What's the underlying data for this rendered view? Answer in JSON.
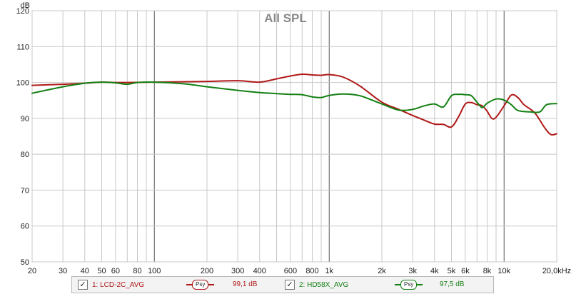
{
  "chart_data": {
    "type": "line",
    "title": "All SPL",
    "ylabel": "dB",
    "xscale": "log",
    "xlim": [
      20,
      20000
    ],
    "ylim": [
      50,
      120
    ],
    "grid": true,
    "x_tick_labels": [
      {
        "v": 20,
        "t": "20"
      },
      {
        "v": 30,
        "t": "30"
      },
      {
        "v": 40,
        "t": "40"
      },
      {
        "v": 50,
        "t": "50"
      },
      {
        "v": 60,
        "t": "60"
      },
      {
        "v": 80,
        "t": "80"
      },
      {
        "v": 100,
        "t": "100"
      },
      {
        "v": 200,
        "t": "200"
      },
      {
        "v": 300,
        "t": "300"
      },
      {
        "v": 400,
        "t": "400"
      },
      {
        "v": 600,
        "t": "600"
      },
      {
        "v": 800,
        "t": "800"
      },
      {
        "v": 1000,
        "t": "1k"
      },
      {
        "v": 2000,
        "t": "2k"
      },
      {
        "v": 3000,
        "t": "3k"
      },
      {
        "v": 4000,
        "t": "4k"
      },
      {
        "v": 5000,
        "t": "5k"
      },
      {
        "v": 6000,
        "t": "6k"
      },
      {
        "v": 8000,
        "t": "8k"
      },
      {
        "v": 10000,
        "t": "10k"
      },
      {
        "v": 20000,
        "t": "20,0kHz"
      }
    ],
    "y_ticks": [
      50,
      60,
      70,
      80,
      90,
      100,
      110,
      120
    ],
    "series": [
      {
        "name": "1: LCD-2C_AVG",
        "color": "#b01818",
        "value_label": "99,1 dB",
        "points": [
          [
            20,
            99.2
          ],
          [
            30,
            99.5
          ],
          [
            40,
            99.8
          ],
          [
            50,
            100.1
          ],
          [
            60,
            100.0
          ],
          [
            70,
            100.0
          ],
          [
            100,
            100.1
          ],
          [
            200,
            100.3
          ],
          [
            300,
            100.5
          ],
          [
            400,
            100.1
          ],
          [
            500,
            101.0
          ],
          [
            600,
            101.8
          ],
          [
            700,
            102.3
          ],
          [
            800,
            102.1
          ],
          [
            900,
            102.0
          ],
          [
            1000,
            102.2
          ],
          [
            1200,
            101.5
          ],
          [
            1500,
            99.0
          ],
          [
            2000,
            94.5
          ],
          [
            2500,
            92.5
          ],
          [
            3000,
            90.8
          ],
          [
            3500,
            89.5
          ],
          [
            4000,
            88.4
          ],
          [
            4500,
            88.3
          ],
          [
            5000,
            87.6
          ],
          [
            5500,
            90.5
          ],
          [
            6000,
            94.0
          ],
          [
            6500,
            94.4
          ],
          [
            7000,
            93.8
          ],
          [
            7500,
            93.5
          ],
          [
            8000,
            92.0
          ],
          [
            8500,
            90.0
          ],
          [
            9000,
            90.3
          ],
          [
            10000,
            93.5
          ],
          [
            11000,
            96.5
          ],
          [
            12000,
            95.8
          ],
          [
            13000,
            93.8
          ],
          [
            15000,
            91.5
          ],
          [
            17000,
            87.5
          ],
          [
            18500,
            85.5
          ],
          [
            20000,
            85.7
          ]
        ]
      },
      {
        "name": "2: HD58X_AVG",
        "color": "#148014",
        "value_label": "97,5 dB",
        "points": [
          [
            20,
            97.0
          ],
          [
            30,
            98.8
          ],
          [
            40,
            99.8
          ],
          [
            50,
            100.1
          ],
          [
            60,
            99.9
          ],
          [
            70,
            99.5
          ],
          [
            80,
            100.0
          ],
          [
            100,
            100.1
          ],
          [
            150,
            99.6
          ],
          [
            200,
            98.8
          ],
          [
            300,
            97.8
          ],
          [
            400,
            97.2
          ],
          [
            500,
            96.9
          ],
          [
            600,
            96.7
          ],
          [
            700,
            96.6
          ],
          [
            800,
            96.0
          ],
          [
            900,
            95.8
          ],
          [
            1000,
            96.4
          ],
          [
            1200,
            96.8
          ],
          [
            1500,
            96.3
          ],
          [
            2000,
            94.0
          ],
          [
            2500,
            92.3
          ],
          [
            3000,
            92.5
          ],
          [
            3500,
            93.5
          ],
          [
            4000,
            94.0
          ],
          [
            4500,
            93.2
          ],
          [
            5000,
            96.3
          ],
          [
            5500,
            96.7
          ],
          [
            6000,
            96.6
          ],
          [
            6500,
            96.3
          ],
          [
            7000,
            94.5
          ],
          [
            7500,
            93.0
          ],
          [
            8000,
            94.2
          ],
          [
            9000,
            95.4
          ],
          [
            10000,
            95.1
          ],
          [
            11000,
            93.8
          ],
          [
            12000,
            92.2
          ],
          [
            14000,
            91.8
          ],
          [
            16000,
            91.8
          ],
          [
            17500,
            93.8
          ],
          [
            20000,
            94.1
          ]
        ]
      }
    ]
  },
  "legend": {
    "items": [
      {
        "label": "1: LCD-2C_AVG",
        "psy": "Psy",
        "value": "99,1 dB",
        "color": "#b01818",
        "checked": "✓"
      },
      {
        "label": "2: HD58X_AVG",
        "psy": "Psy",
        "value": "97,5 dB",
        "color": "#148014",
        "checked": "✓"
      }
    ]
  }
}
